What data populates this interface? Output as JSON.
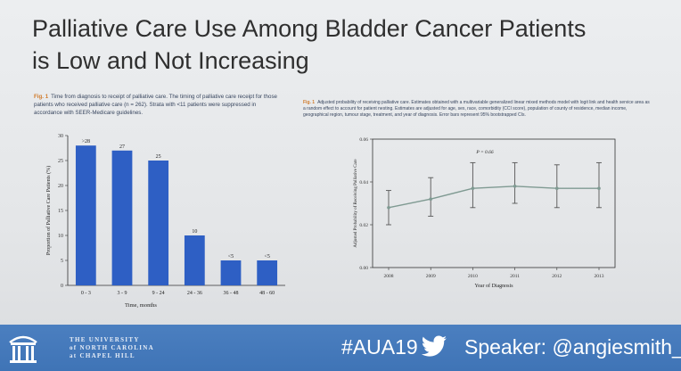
{
  "slide": {
    "title_line1": "Palliative Care Use Among Bladder Cancer Patients",
    "title_line2": "is Low and Not Increasing"
  },
  "left_figure": {
    "fig_label": "Fig. 1",
    "caption": "Time from diagnosis to receipt of palliative care. The timing of palliative care receipt for those patients who received palliative care (n = 262). Strata with <11 patients were suppressed in accordance with SEER-Medicare guidelines."
  },
  "right_figure": {
    "fig_label": "Fig. 1",
    "caption": "Adjusted probability of receiving palliative care. Estimates obtained with a multivariable generalized linear mixed methods model with logit link and health service area as a random effect to account for patient nesting. Estimates are adjusted for age, sex, race, comorbidity (CCI score), population of county of residence, median income, geographical region, tumour stage, treatment, and year of diagnosis. Error bars represent 95% bootstrapped CIs."
  },
  "chart_data": [
    {
      "type": "bar",
      "title": "",
      "xlabel": "Time, months",
      "ylabel": "Proportion of Palliative Care Patients (%)",
      "categories": [
        "0 - 3",
        "3 - 9",
        "9 - 24",
        "24 - 36",
        "36 - 48",
        "48 - 60"
      ],
      "values": [
        28,
        27,
        25,
        10,
        5,
        5
      ],
      "data_labels": [
        ">28",
        "27",
        "25",
        "10",
        "<5",
        "<5"
      ],
      "ylim": [
        0,
        30
      ],
      "yticks": [
        0,
        5,
        10,
        15,
        20,
        25,
        30
      ],
      "color": "#2e5fc4"
    },
    {
      "type": "line",
      "title": "",
      "annotation": "P = 0.66",
      "xlabel": "Year of Diagnosis",
      "ylabel": "Adjusted Probability of Receiving Palliative Care",
      "x": [
        2008,
        2009,
        2010,
        2011,
        2012,
        2013
      ],
      "y": [
        0.028,
        0.032,
        0.037,
        0.038,
        0.037,
        0.037
      ],
      "ci_low": [
        0.02,
        0.024,
        0.028,
        0.03,
        0.028,
        0.028
      ],
      "ci_high": [
        0.036,
        0.042,
        0.049,
        0.049,
        0.048,
        0.049
      ],
      "ylim": [
        0,
        0.06
      ],
      "yticks": [
        0,
        0.02,
        0.04,
        0.06
      ],
      "ytick_labels": [
        "0.00",
        "0.02",
        "0.04",
        "0.06"
      ],
      "color": "#7f9a92"
    }
  ],
  "footer": {
    "university_line1": "THE UNIVERSITY",
    "university_line2": "of NORTH CAROLINA",
    "university_line3": "at CHAPEL HILL",
    "hashtag": "#AUA19",
    "speaker": "Speaker: @angiesmith_urc",
    "bg_color": "#4178ba"
  }
}
